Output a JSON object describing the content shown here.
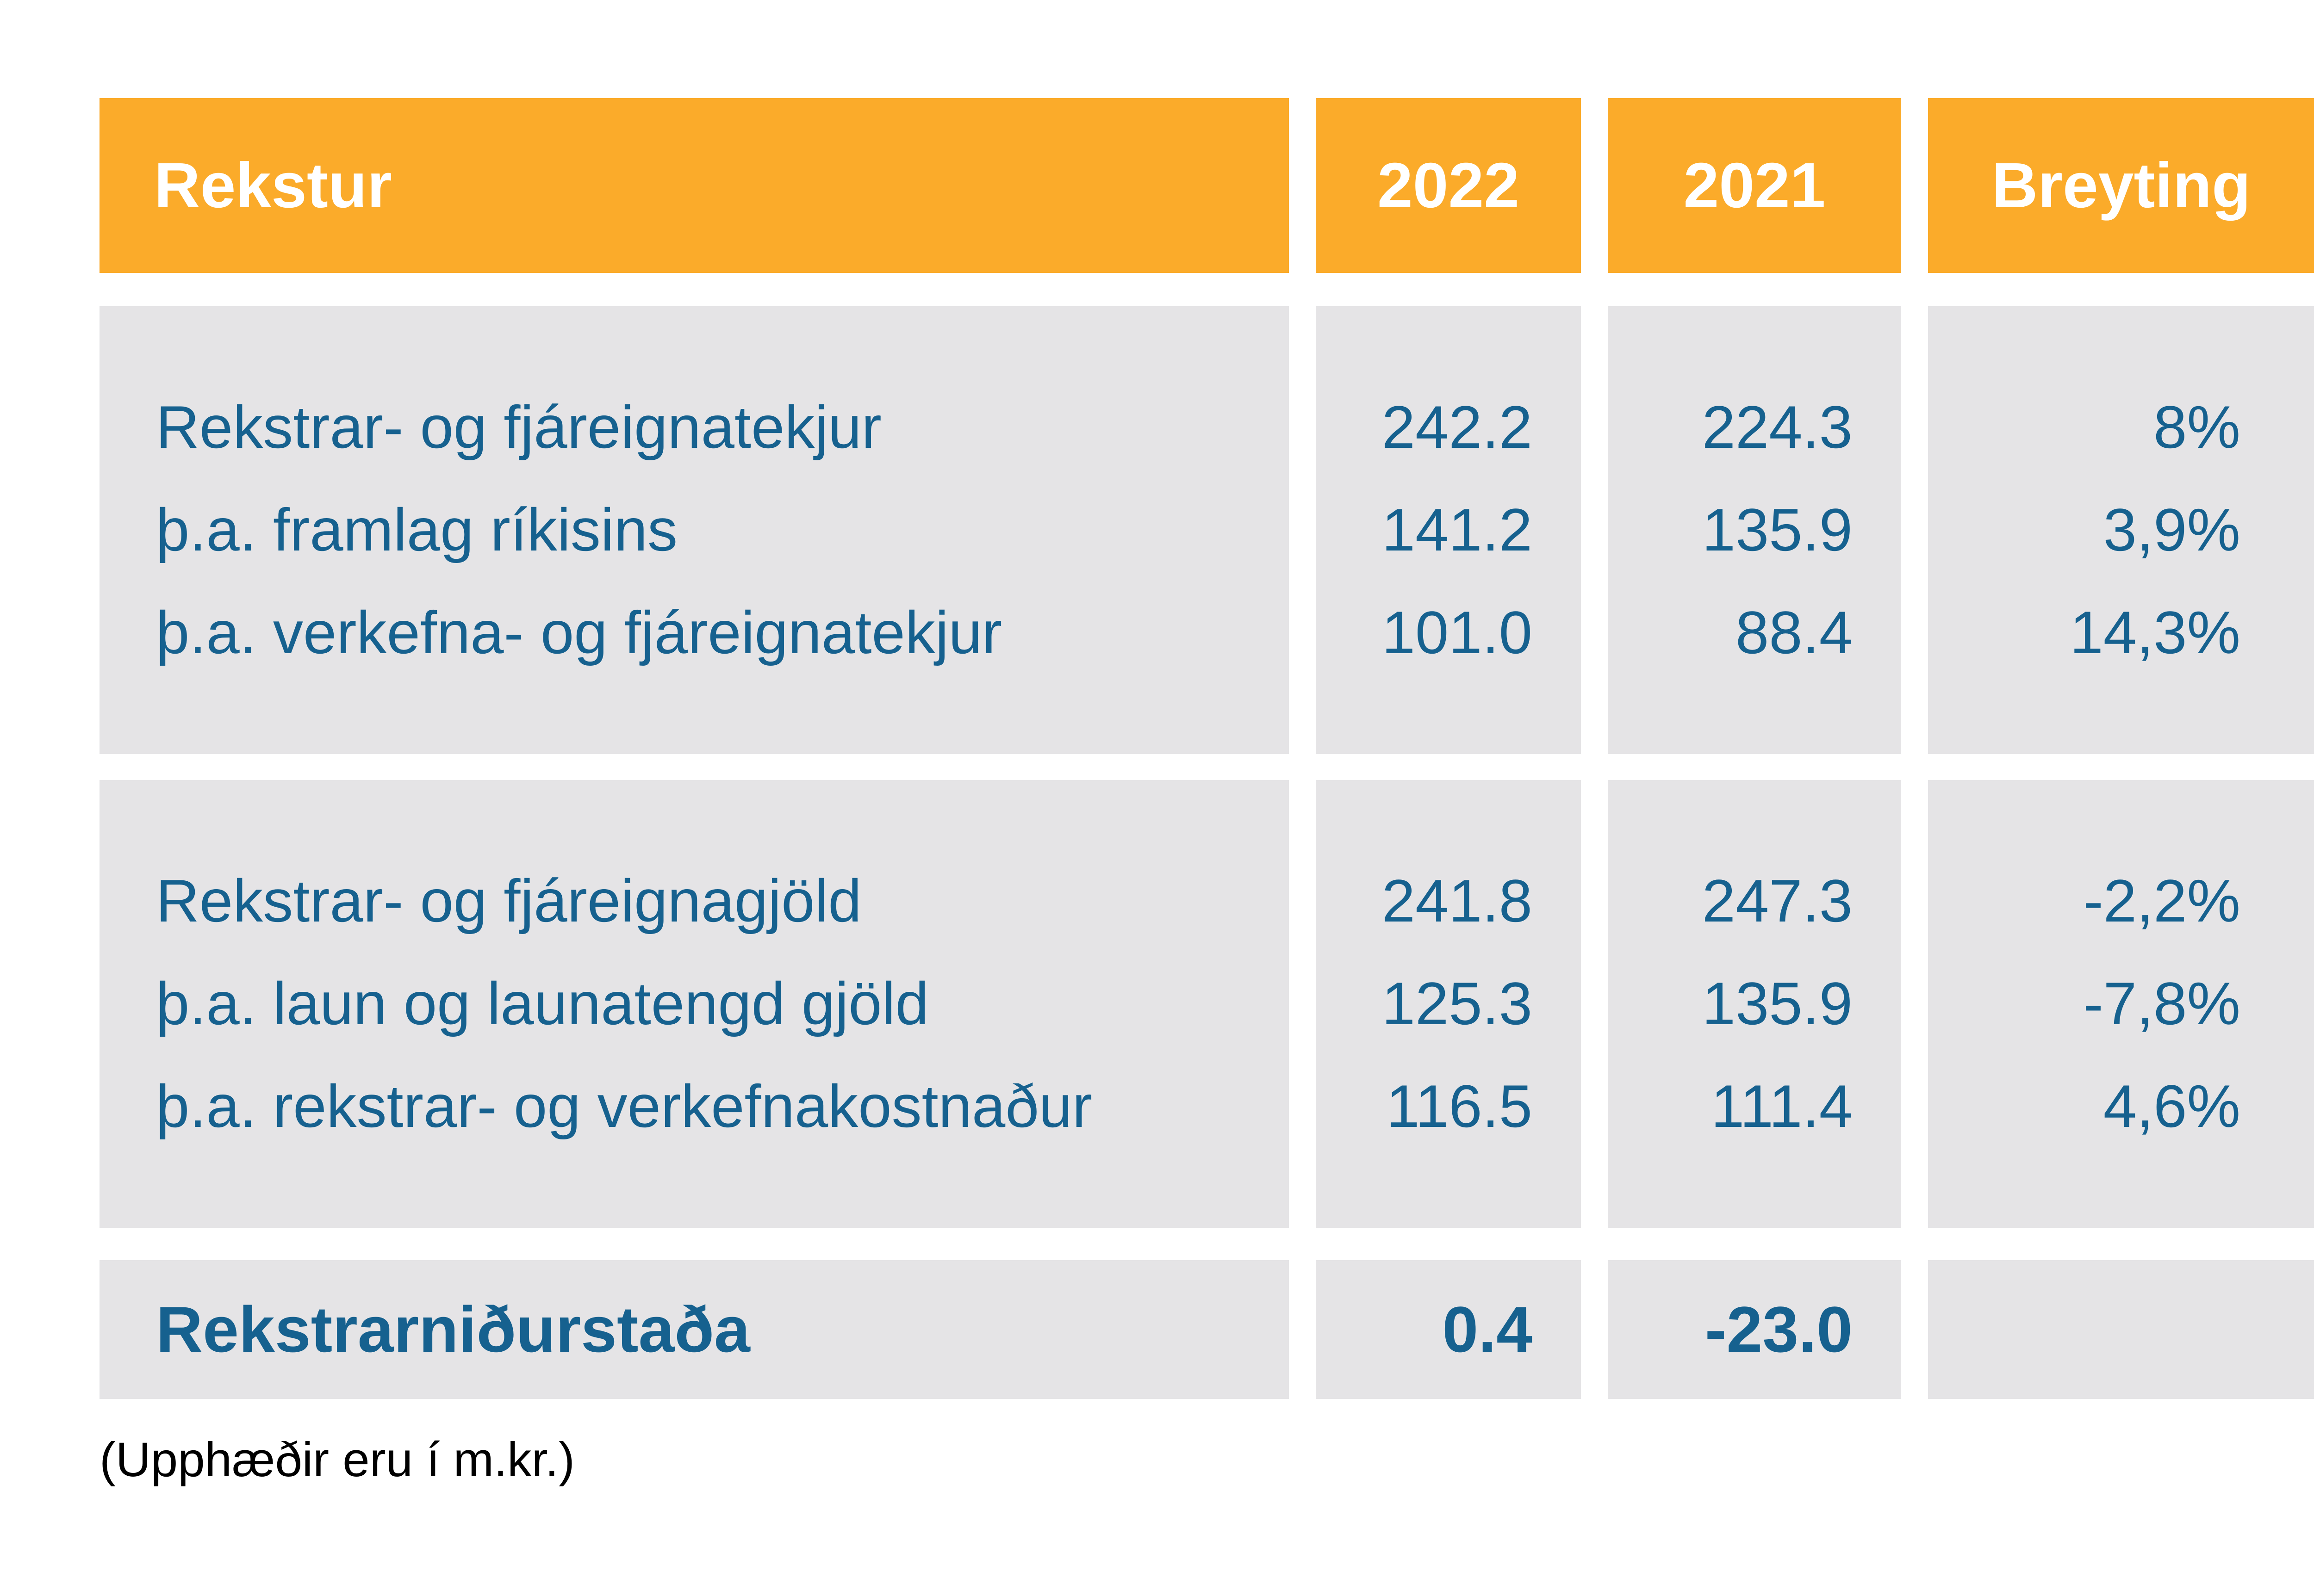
{
  "chart_data": {
    "type": "table",
    "title": "Rekstur",
    "columns": [
      "Rekstur",
      "2022",
      "2021",
      "Breyting"
    ],
    "unit_note": "(Upphæðir eru í m.kr.)",
    "sections": [
      {
        "name": "revenues",
        "rows": [
          {
            "label": "Rekstrar- og fjáreignatekjur",
            "v2022": "242.2",
            "v2021": "224.3",
            "breyting": "8%"
          },
          {
            "label": "þ.a. framlag ríkisins",
            "v2022": "141.2",
            "v2021": "135.9",
            "breyting": "3,9%"
          },
          {
            "label": "þ.a. verkefna- og fjáreignatekjur",
            "v2022": "101.0",
            "v2021": "88.4",
            "breyting": "14,3%"
          }
        ]
      },
      {
        "name": "expenses",
        "rows": [
          {
            "label": "Rekstrar- og fjáreignagjöld",
            "v2022": "241.8",
            "v2021": "247.3",
            "breyting": "-2,2%"
          },
          {
            "label": "þ.a. laun og launatengd gjöld",
            "v2022": "125.3",
            "v2021": "135.9",
            "breyting": "-7,8%"
          },
          {
            "label": "þ.a. rekstrar- og verkefnakostnaður",
            "v2022": "116.5",
            "v2021": "111.4",
            "breyting": "4,6%"
          }
        ]
      }
    ],
    "footer": {
      "label": "Rekstrarniðurstaða",
      "v2022": "0.4",
      "v2021": "-23.0"
    }
  },
  "colors": {
    "header_bg": "#FBAB2A",
    "header_text": "#FFFFFF",
    "cell_bg": "#E5E4E6",
    "value_text": "#16618F",
    "note_text": "#000000"
  }
}
